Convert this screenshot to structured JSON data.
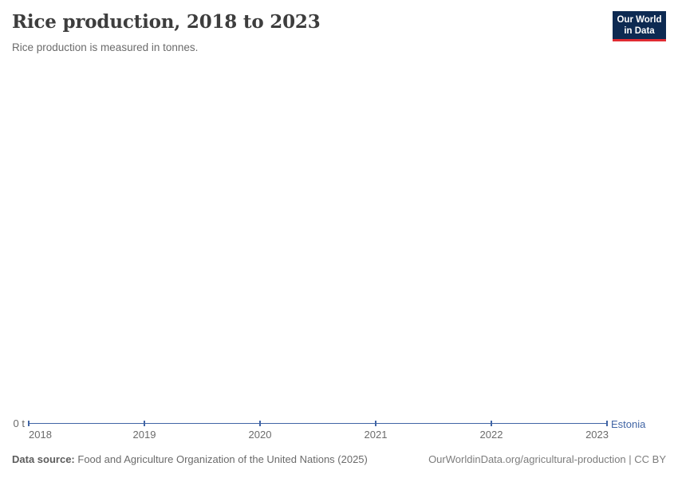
{
  "header": {
    "title": "Rice production, 2018 to 2023",
    "subtitle": "Rice production is measured in tonnes.",
    "logo": {
      "line1": "Our World",
      "line2": "in Data"
    }
  },
  "chart_data": {
    "type": "line",
    "title": "Rice production, 2018 to 2023",
    "subtitle": "Rice production is measured in tonnes.",
    "x": [
      2018,
      2019,
      2020,
      2021,
      2022,
      2023
    ],
    "series": [
      {
        "name": "Estonia",
        "values": [
          0,
          0,
          0,
          0,
          0,
          0
        ],
        "color": "#4165a5"
      }
    ],
    "unit": "tonnes",
    "y_ticks": [
      "0 t"
    ],
    "ylim": [
      0,
      0
    ],
    "xlim": [
      2018,
      2023
    ],
    "grid": false,
    "markers": true,
    "legend_position": "end-of-line"
  },
  "footer": {
    "source_label": "Data source:",
    "source_text": "Food and Agriculture Organization of the United Nations (2025)",
    "credit": "OurWorldinData.org/agricultural-production | CC BY"
  },
  "colors": {
    "line": "#4165a5",
    "logo_bg": "#0d2a52",
    "logo_accent": "#e02b32",
    "title_text": "#3d3d3d",
    "axis_text": "#6b6b6b"
  }
}
